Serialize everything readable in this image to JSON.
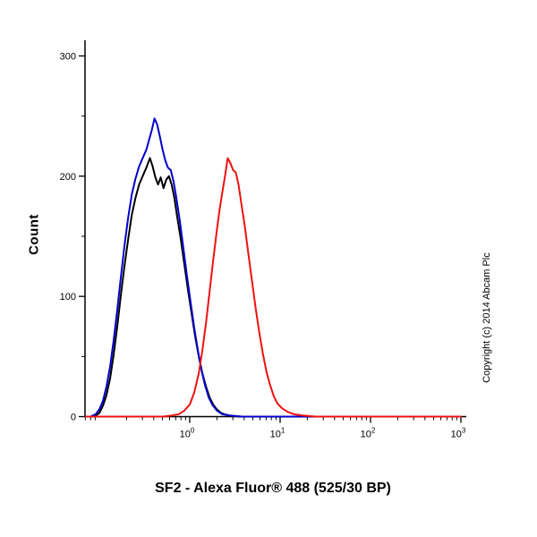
{
  "chart_data": {
    "type": "line",
    "subtype": "flow-cytometry-histogram",
    "title": "",
    "xlabel": "SF2 - Alexa Fluor® 488 (525/30 BP)",
    "ylabel": "Count",
    "watermark": "Copyright (c) 2014 Abcam Plc",
    "x_scale": "log",
    "xlim_log": [
      -1.158,
      3
    ],
    "x_tick_exponents": [
      0,
      1,
      2,
      3
    ],
    "x_tick_base": "10",
    "ylim": [
      0,
      300
    ],
    "y_ticks": [
      0,
      100,
      200,
      300
    ],
    "y_minor_step": 50,
    "grid": false,
    "legend": "none",
    "axis_color": "#000000",
    "series": [
      {
        "name": "black-curve",
        "color": "#000000",
        "points": [
          [
            -1.06,
            0
          ],
          [
            -1.0,
            3
          ],
          [
            -0.96,
            9
          ],
          [
            -0.92,
            18
          ],
          [
            -0.88,
            32
          ],
          [
            -0.84,
            52
          ],
          [
            -0.8,
            76
          ],
          [
            -0.76,
            102
          ],
          [
            -0.72,
            126
          ],
          [
            -0.68,
            148
          ],
          [
            -0.64,
            168
          ],
          [
            -0.6,
            182
          ],
          [
            -0.56,
            193
          ],
          [
            -0.52,
            200
          ],
          [
            -0.48,
            207
          ],
          [
            -0.44,
            215
          ],
          [
            -0.41,
            208
          ],
          [
            -0.38,
            199
          ],
          [
            -0.35,
            193
          ],
          [
            -0.32,
            199
          ],
          [
            -0.29,
            190
          ],
          [
            -0.26,
            197
          ],
          [
            -0.23,
            200
          ],
          [
            -0.2,
            193
          ],
          [
            -0.17,
            182
          ],
          [
            -0.14,
            167
          ],
          [
            -0.1,
            148
          ],
          [
            -0.06,
            127
          ],
          [
            -0.02,
            106
          ],
          [
            0.02,
            86
          ],
          [
            0.06,
            67
          ],
          [
            0.1,
            50
          ],
          [
            0.14,
            36
          ],
          [
            0.18,
            25
          ],
          [
            0.22,
            16
          ],
          [
            0.26,
            10
          ],
          [
            0.3,
            6
          ],
          [
            0.35,
            3
          ],
          [
            0.42,
            1
          ],
          [
            0.55,
            0
          ],
          [
            3.0,
            0
          ]
        ]
      },
      {
        "name": "blue-curve",
        "color": "#0000cc",
        "points": [
          [
            -1.1,
            0
          ],
          [
            -1.04,
            2
          ],
          [
            -1.0,
            6
          ],
          [
            -0.96,
            13
          ],
          [
            -0.92,
            25
          ],
          [
            -0.88,
            42
          ],
          [
            -0.84,
            64
          ],
          [
            -0.8,
            90
          ],
          [
            -0.76,
            117
          ],
          [
            -0.72,
            143
          ],
          [
            -0.68,
            166
          ],
          [
            -0.64,
            185
          ],
          [
            -0.6,
            198
          ],
          [
            -0.56,
            208
          ],
          [
            -0.52,
            215
          ],
          [
            -0.48,
            222
          ],
          [
            -0.45,
            230
          ],
          [
            -0.42,
            238
          ],
          [
            -0.39,
            248
          ],
          [
            -0.36,
            243
          ],
          [
            -0.33,
            233
          ],
          [
            -0.3,
            222
          ],
          [
            -0.27,
            213
          ],
          [
            -0.24,
            207
          ],
          [
            -0.21,
            205
          ],
          [
            -0.18,
            196
          ],
          [
            -0.15,
            183
          ],
          [
            -0.11,
            163
          ],
          [
            -0.07,
            140
          ],
          [
            -0.03,
            117
          ],
          [
            0.01,
            95
          ],
          [
            0.05,
            74
          ],
          [
            0.09,
            55
          ],
          [
            0.13,
            39
          ],
          [
            0.17,
            26
          ],
          [
            0.21,
            16
          ],
          [
            0.25,
            10
          ],
          [
            0.3,
            5
          ],
          [
            0.36,
            2
          ],
          [
            0.45,
            1
          ],
          [
            0.58,
            0
          ],
          [
            3.0,
            0
          ]
        ]
      },
      {
        "name": "red-curve",
        "color": "#ee1111",
        "points": [
          [
            -1.15,
            0
          ],
          [
            -0.3,
            0
          ],
          [
            -0.2,
            1
          ],
          [
            -0.12,
            2
          ],
          [
            -0.06,
            5
          ],
          [
            0.0,
            10
          ],
          [
            0.05,
            20
          ],
          [
            0.1,
            36
          ],
          [
            0.14,
            55
          ],
          [
            0.18,
            78
          ],
          [
            0.22,
            104
          ],
          [
            0.26,
            130
          ],
          [
            0.3,
            155
          ],
          [
            0.33,
            172
          ],
          [
            0.36,
            186
          ],
          [
            0.39,
            200
          ],
          [
            0.42,
            215
          ],
          [
            0.45,
            211
          ],
          [
            0.48,
            205
          ],
          [
            0.51,
            203
          ],
          [
            0.54,
            193
          ],
          [
            0.57,
            178
          ],
          [
            0.61,
            158
          ],
          [
            0.65,
            135
          ],
          [
            0.69,
            112
          ],
          [
            0.73,
            90
          ],
          [
            0.77,
            70
          ],
          [
            0.81,
            52
          ],
          [
            0.85,
            37
          ],
          [
            0.89,
            26
          ],
          [
            0.93,
            17
          ],
          [
            0.97,
            11
          ],
          [
            1.02,
            7
          ],
          [
            1.08,
            4
          ],
          [
            1.15,
            2
          ],
          [
            1.25,
            1
          ],
          [
            1.4,
            0
          ],
          [
            3.0,
            0
          ]
        ]
      }
    ]
  }
}
